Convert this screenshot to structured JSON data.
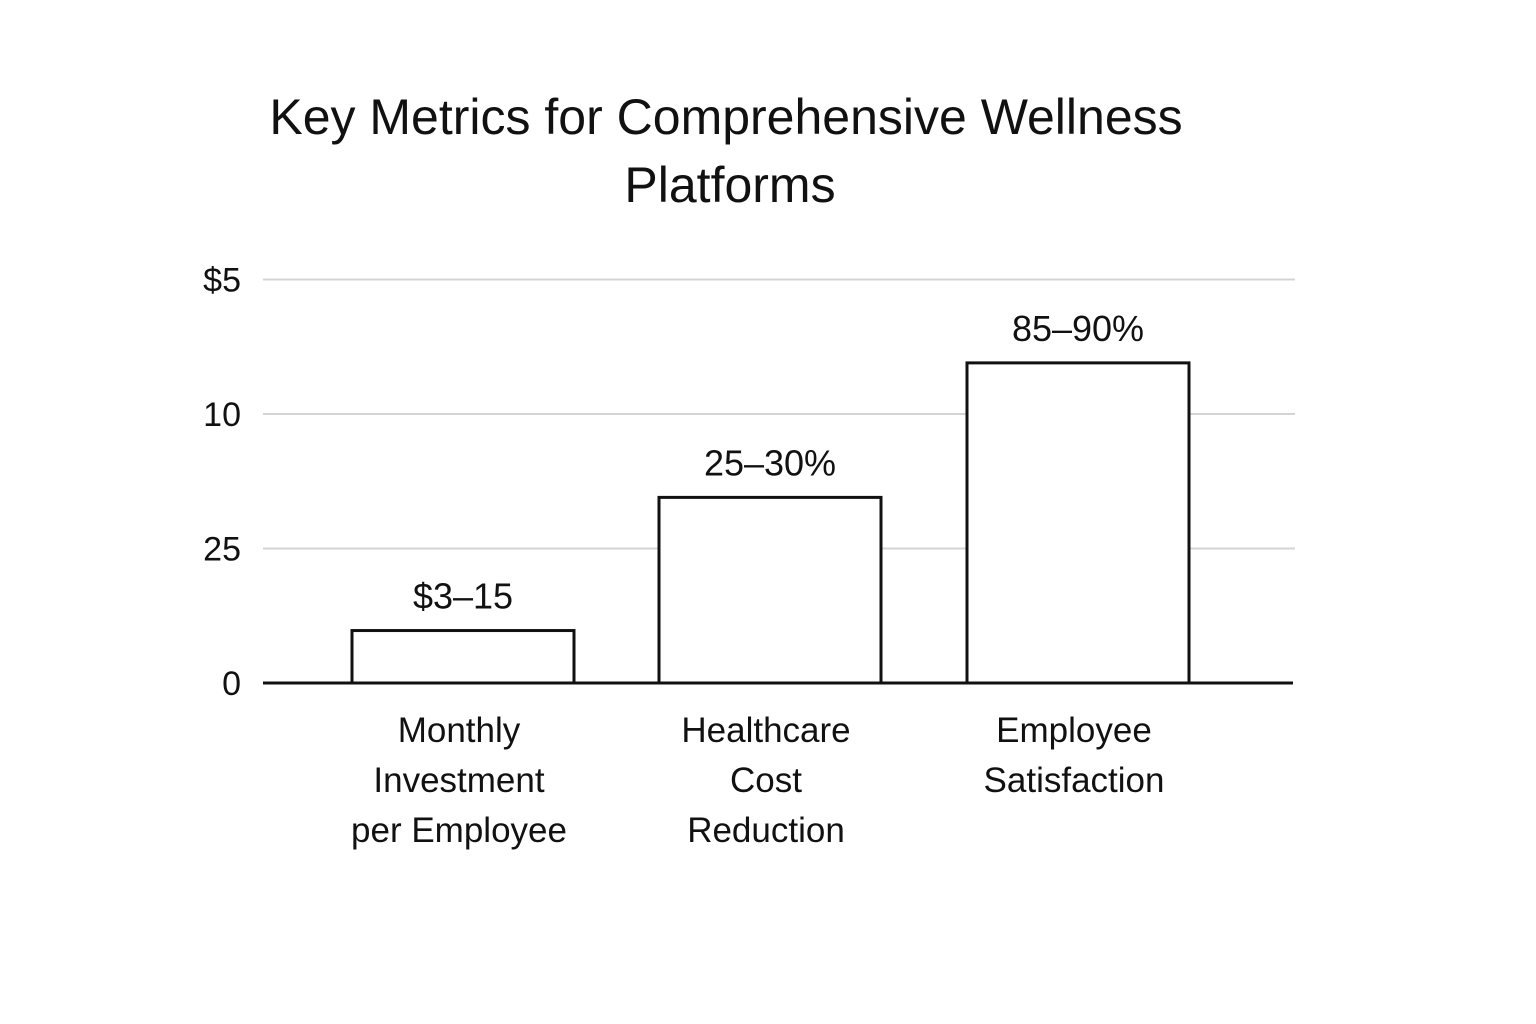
{
  "chart_data": {
    "type": "bar",
    "title_lines": [
      "Key Metrics for Comprehensive Wellness",
      "Platforms"
    ],
    "y_ticks": [
      "0",
      "25",
      "10",
      "$5"
    ],
    "categories": [
      [
        "Monthly",
        "Investment",
        "per Employee"
      ],
      [
        "Healthcare",
        "Cost",
        "Reduction"
      ],
      [
        "Employee",
        "Satisfaction"
      ]
    ],
    "data_labels": [
      "$3–15",
      "25–30%",
      "85–90%"
    ],
    "values": [
      0.39,
      1.38,
      2.38
    ],
    "ylim": [
      0,
      3
    ],
    "grid": true,
    "legend": "none",
    "colors": {
      "bar_fill": "#ffffff",
      "bar_stroke": "#111111",
      "grid": "#d4d4d4",
      "text": "#111111"
    }
  }
}
